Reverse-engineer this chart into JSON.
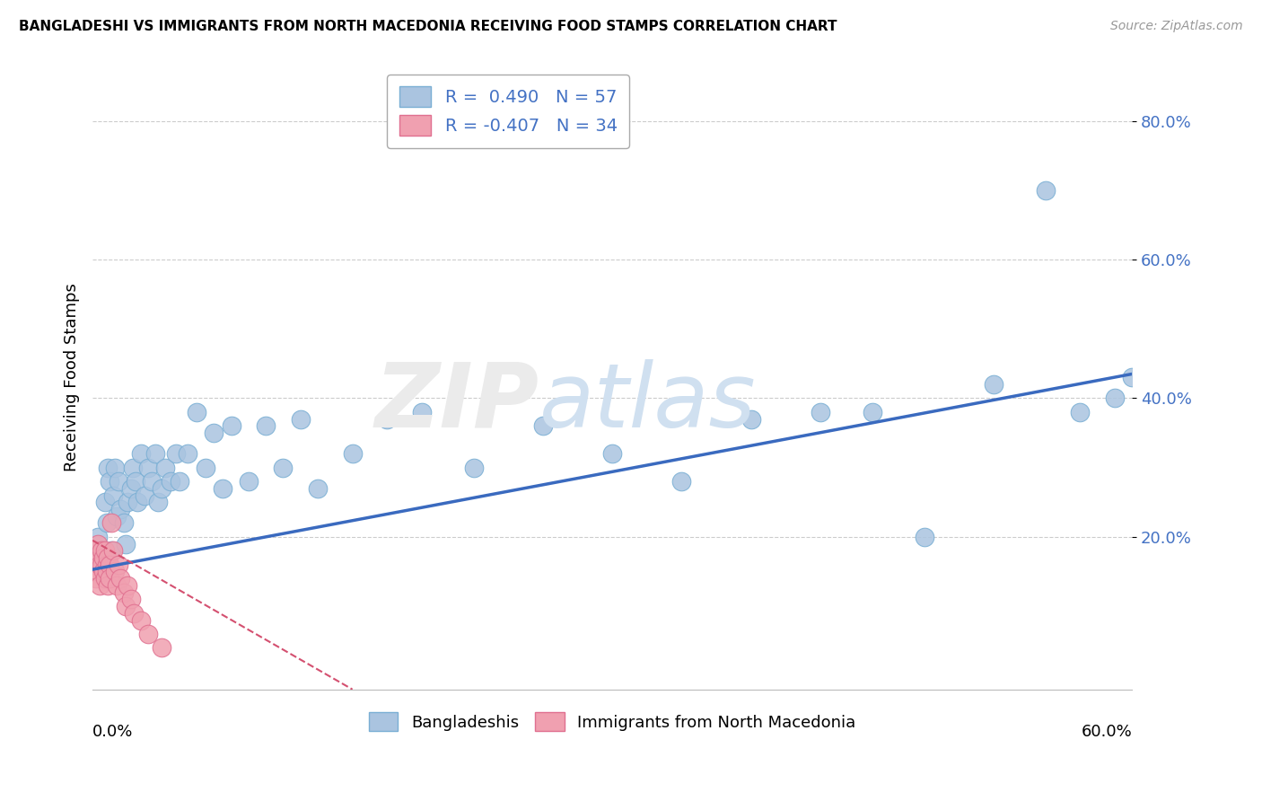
{
  "title": "BANGLADESHI VS IMMIGRANTS FROM NORTH MACEDONIA RECEIVING FOOD STAMPS CORRELATION CHART",
  "source": "Source: ZipAtlas.com",
  "ylabel": "Receiving Food Stamps",
  "y_ticks": [
    0.2,
    0.4,
    0.6,
    0.8
  ],
  "y_tick_labels": [
    "20.0%",
    "40.0%",
    "60.0%",
    "80.0%"
  ],
  "xlim": [
    0.0,
    0.6
  ],
  "ylim": [
    -0.02,
    0.88
  ],
  "blue_R": 0.49,
  "blue_N": 57,
  "pink_R": -0.407,
  "pink_N": 34,
  "blue_color": "#aac4e0",
  "blue_edge": "#7aafd4",
  "pink_color": "#f0a0b0",
  "pink_edge": "#e07090",
  "blue_line_color": "#3a6abf",
  "pink_line_color": "#d45070",
  "legend_label_blue": "Bangladeshis",
  "legend_label_pink": "Immigrants from North Macedonia",
  "blue_line_x0": 0.0,
  "blue_line_y0": 0.153,
  "blue_line_x1": 0.6,
  "blue_line_y1": 0.435,
  "pink_line_x0": 0.0,
  "pink_line_y0": 0.195,
  "pink_line_x1": 0.15,
  "pink_line_y1": -0.02,
  "blue_scatter_x": [
    0.003,
    0.005,
    0.007,
    0.008,
    0.009,
    0.01,
    0.011,
    0.012,
    0.013,
    0.014,
    0.015,
    0.016,
    0.018,
    0.019,
    0.02,
    0.022,
    0.023,
    0.025,
    0.026,
    0.028,
    0.03,
    0.032,
    0.034,
    0.036,
    0.038,
    0.04,
    0.042,
    0.045,
    0.048,
    0.05,
    0.055,
    0.06,
    0.065,
    0.07,
    0.075,
    0.08,
    0.09,
    0.1,
    0.11,
    0.12,
    0.13,
    0.15,
    0.17,
    0.19,
    0.22,
    0.26,
    0.3,
    0.34,
    0.38,
    0.42,
    0.45,
    0.48,
    0.52,
    0.55,
    0.57,
    0.59,
    0.6
  ],
  "blue_scatter_y": [
    0.2,
    0.18,
    0.25,
    0.22,
    0.3,
    0.28,
    0.18,
    0.26,
    0.3,
    0.23,
    0.28,
    0.24,
    0.22,
    0.19,
    0.25,
    0.27,
    0.3,
    0.28,
    0.25,
    0.32,
    0.26,
    0.3,
    0.28,
    0.32,
    0.25,
    0.27,
    0.3,
    0.28,
    0.32,
    0.28,
    0.32,
    0.38,
    0.3,
    0.35,
    0.27,
    0.36,
    0.28,
    0.36,
    0.3,
    0.37,
    0.27,
    0.32,
    0.37,
    0.38,
    0.3,
    0.36,
    0.32,
    0.28,
    0.37,
    0.38,
    0.38,
    0.2,
    0.42,
    0.7,
    0.38,
    0.4,
    0.43
  ],
  "pink_scatter_x": [
    0.001,
    0.001,
    0.002,
    0.002,
    0.003,
    0.003,
    0.004,
    0.004,
    0.005,
    0.005,
    0.006,
    0.006,
    0.007,
    0.007,
    0.008,
    0.008,
    0.009,
    0.009,
    0.01,
    0.01,
    0.011,
    0.012,
    0.013,
    0.014,
    0.015,
    0.016,
    0.018,
    0.019,
    0.02,
    0.022,
    0.024,
    0.028,
    0.032,
    0.04
  ],
  "pink_scatter_y": [
    0.16,
    0.18,
    0.14,
    0.17,
    0.15,
    0.19,
    0.16,
    0.13,
    0.18,
    0.16,
    0.15,
    0.17,
    0.14,
    0.18,
    0.16,
    0.15,
    0.17,
    0.13,
    0.16,
    0.14,
    0.22,
    0.18,
    0.15,
    0.13,
    0.16,
    0.14,
    0.12,
    0.1,
    0.13,
    0.11,
    0.09,
    0.08,
    0.06,
    0.04
  ]
}
